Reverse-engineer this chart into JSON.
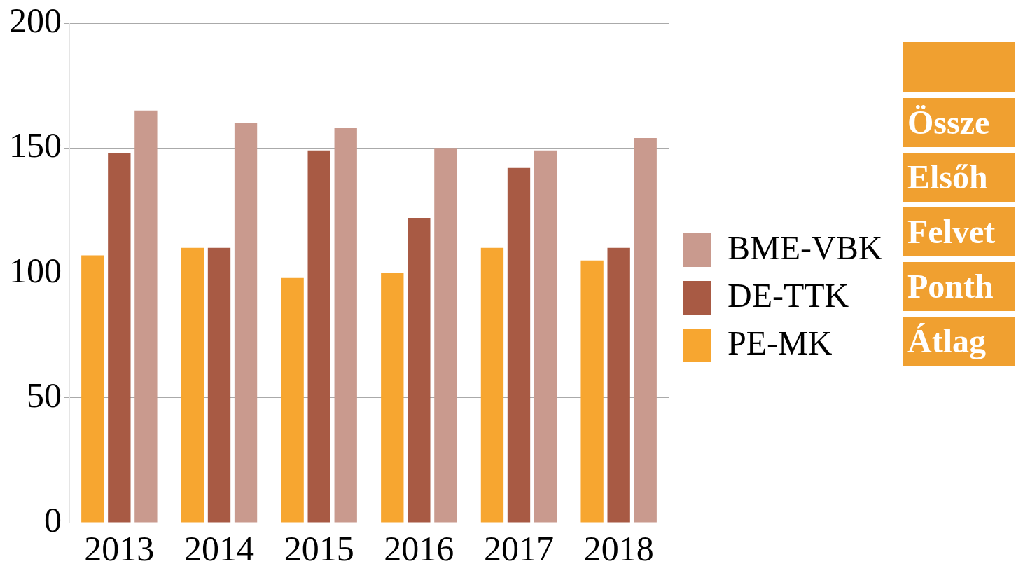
{
  "chart_data": {
    "type": "bar",
    "categories": [
      "2013",
      "2014",
      "2015",
      "2016",
      "2017",
      "2018"
    ],
    "series": [
      {
        "name": "PE-MK",
        "color": "#f7a630",
        "values": [
          107,
          110,
          98,
          100,
          110,
          105
        ]
      },
      {
        "name": "DE-TTK",
        "color": "#a85a44",
        "values": [
          148,
          110,
          149,
          122,
          142,
          110
        ]
      },
      {
        "name": "BME-VBK",
        "color": "#c99a8e",
        "values": [
          165,
          160,
          158,
          150,
          149,
          154
        ]
      }
    ],
    "ylim": [
      0,
      200
    ],
    "yticks": [
      0,
      50,
      100,
      150,
      200
    ],
    "grid": "y",
    "legend": "right",
    "annotations": [
      "Össze",
      "Elsőh",
      "Felvet",
      "Ponth",
      "Átlag"
    ]
  }
}
